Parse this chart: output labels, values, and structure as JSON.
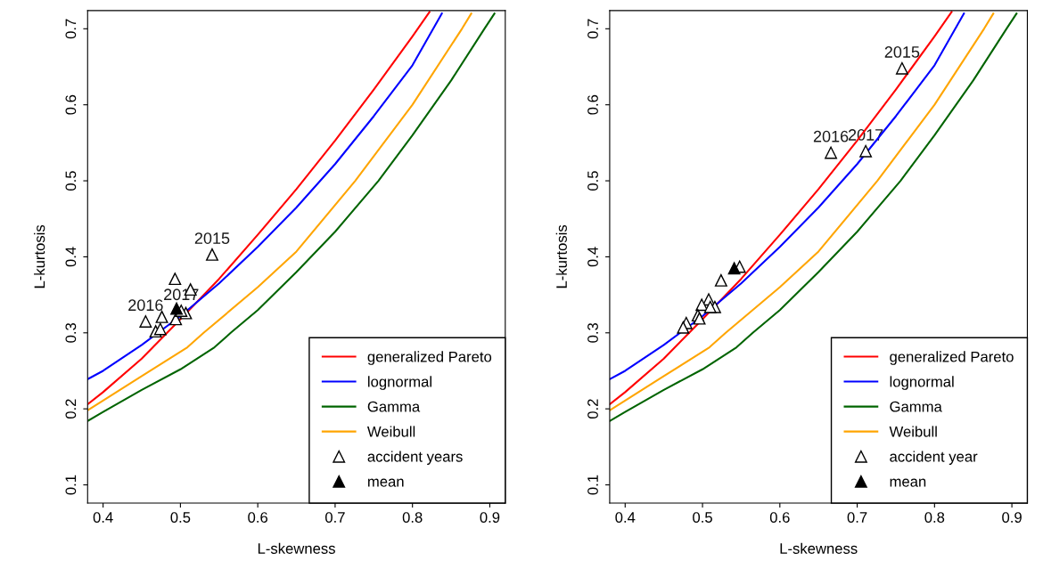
{
  "chart_data": [
    {
      "type": "line",
      "xlabel": "L-skewness",
      "ylabel": "L-kurtosis",
      "xlim": [
        0.38,
        0.92
      ],
      "ylim": [
        0.076,
        0.724
      ],
      "xticks": [
        0.4,
        0.5,
        0.6,
        0.7,
        0.8,
        0.9
      ],
      "yticks": [
        0.1,
        0.2,
        0.3,
        0.4,
        0.5,
        0.6,
        0.7
      ],
      "grid": false,
      "legend": "bottom right",
      "series": [
        {
          "name": "generalized Pareto",
          "color": "#ff0000",
          "x": [
            0.38,
            0.4,
            0.45,
            0.5,
            0.55,
            0.6,
            0.65,
            0.7,
            0.75,
            0.8,
            0.822
          ],
          "values": [
            0.206,
            0.222,
            0.266,
            0.318,
            0.371,
            0.429,
            0.489,
            0.553,
            0.62,
            0.69,
            0.722
          ]
        },
        {
          "name": "lognormal",
          "color": "#0000ff",
          "x": [
            0.38,
            0.4,
            0.45,
            0.5,
            0.55,
            0.6,
            0.65,
            0.7,
            0.75,
            0.8,
            0.838
          ],
          "values": [
            0.239,
            0.25,
            0.284,
            0.322,
            0.365,
            0.413,
            0.465,
            0.522,
            0.585,
            0.652,
            0.72
          ]
        },
        {
          "name": "Gamma",
          "color": "#006400",
          "x": [
            0.38,
            0.4,
            0.45,
            0.5,
            0.544,
            0.565,
            0.6,
            0.65,
            0.7,
            0.756,
            0.8,
            0.85,
            0.893,
            0.906
          ],
          "values": [
            0.184,
            0.196,
            0.225,
            0.252,
            0.281,
            0.3,
            0.33,
            0.38,
            0.433,
            0.5,
            0.56,
            0.632,
            0.7,
            0.72
          ]
        },
        {
          "name": "Weibull",
          "color": "#ffa500",
          "x": [
            0.38,
            0.4,
            0.45,
            0.509,
            0.53,
            0.6,
            0.65,
            0.726,
            0.8,
            0.864,
            0.876
          ],
          "values": [
            0.198,
            0.211,
            0.243,
            0.281,
            0.3,
            0.36,
            0.407,
            0.5,
            0.6,
            0.7,
            0.72
          ]
        },
        {
          "name": "accident years",
          "type": "scatter",
          "marker": "triangle",
          "color": "#ffffff",
          "x": [
            0.541,
            0.493,
            0.513,
            0.455,
            0.476,
            0.468,
            0.474,
            0.494,
            0.507,
            0.501
          ],
          "values": [
            0.403,
            0.371,
            0.357,
            0.315,
            0.321,
            0.302,
            0.305,
            0.318,
            0.326,
            0.329
          ]
        },
        {
          "name": "mean",
          "type": "scatter",
          "marker": "triangle",
          "color": "#000000",
          "x": [
            0.495
          ],
          "values": [
            0.332
          ]
        }
      ],
      "annotations": [
        {
          "text": "2015",
          "x": 0.541,
          "y": 0.403
        },
        {
          "text": "2016",
          "x": 0.455,
          "y": 0.315
        },
        {
          "text": "2017",
          "x": 0.501,
          "y": 0.329
        }
      ]
    },
    {
      "type": "line",
      "xlabel": "L-skewness",
      "ylabel": "L-kurtosis",
      "xlim": [
        0.38,
        0.92
      ],
      "ylim": [
        0.076,
        0.724
      ],
      "xticks": [
        0.4,
        0.5,
        0.6,
        0.7,
        0.8,
        0.9
      ],
      "yticks": [
        0.1,
        0.2,
        0.3,
        0.4,
        0.5,
        0.6,
        0.7
      ],
      "grid": false,
      "legend": "bottom right",
      "series": [
        {
          "name": "generalized Pareto",
          "color": "#ff0000",
          "x": [
            0.38,
            0.4,
            0.45,
            0.5,
            0.55,
            0.6,
            0.65,
            0.7,
            0.75,
            0.8,
            0.822
          ],
          "values": [
            0.206,
            0.222,
            0.266,
            0.318,
            0.371,
            0.429,
            0.489,
            0.553,
            0.62,
            0.69,
            0.722
          ]
        },
        {
          "name": "lognormal",
          "color": "#0000ff",
          "x": [
            0.38,
            0.4,
            0.45,
            0.5,
            0.55,
            0.6,
            0.65,
            0.7,
            0.75,
            0.8,
            0.838
          ],
          "values": [
            0.239,
            0.25,
            0.284,
            0.322,
            0.365,
            0.413,
            0.465,
            0.522,
            0.585,
            0.652,
            0.72
          ]
        },
        {
          "name": "Gamma",
          "color": "#006400",
          "x": [
            0.38,
            0.4,
            0.45,
            0.5,
            0.544,
            0.565,
            0.6,
            0.65,
            0.7,
            0.756,
            0.8,
            0.85,
            0.893,
            0.906
          ],
          "values": [
            0.184,
            0.196,
            0.225,
            0.252,
            0.281,
            0.3,
            0.33,
            0.38,
            0.433,
            0.5,
            0.56,
            0.632,
            0.7,
            0.72
          ]
        },
        {
          "name": "Weibull",
          "color": "#ffa500",
          "x": [
            0.38,
            0.4,
            0.45,
            0.509,
            0.53,
            0.6,
            0.65,
            0.726,
            0.8,
            0.864,
            0.876
          ],
          "values": [
            0.198,
            0.211,
            0.243,
            0.281,
            0.3,
            0.36,
            0.407,
            0.5,
            0.6,
            0.7,
            0.72
          ]
        },
        {
          "name": "accident year",
          "type": "scatter",
          "marker": "triangle",
          "color": "#ffffff",
          "x": [
            0.758,
            0.666,
            0.711,
            0.524,
            0.548,
            0.508,
            0.499,
            0.516,
            0.494,
            0.496,
            0.479,
            0.475,
            0.51
          ],
          "values": [
            0.648,
            0.537,
            0.539,
            0.369,
            0.387,
            0.344,
            0.337,
            0.334,
            0.323,
            0.319,
            0.313,
            0.307,
            0.334
          ]
        },
        {
          "name": "mean",
          "type": "scatter",
          "marker": "triangle",
          "color": "#000000",
          "x": [
            0.541
          ],
          "values": [
            0.385
          ]
        }
      ],
      "annotations": [
        {
          "text": "2015",
          "x": 0.758,
          "y": 0.648
        },
        {
          "text": "2016",
          "x": 0.666,
          "y": 0.537
        },
        {
          "text": "2017",
          "x": 0.711,
          "y": 0.539
        }
      ]
    }
  ]
}
